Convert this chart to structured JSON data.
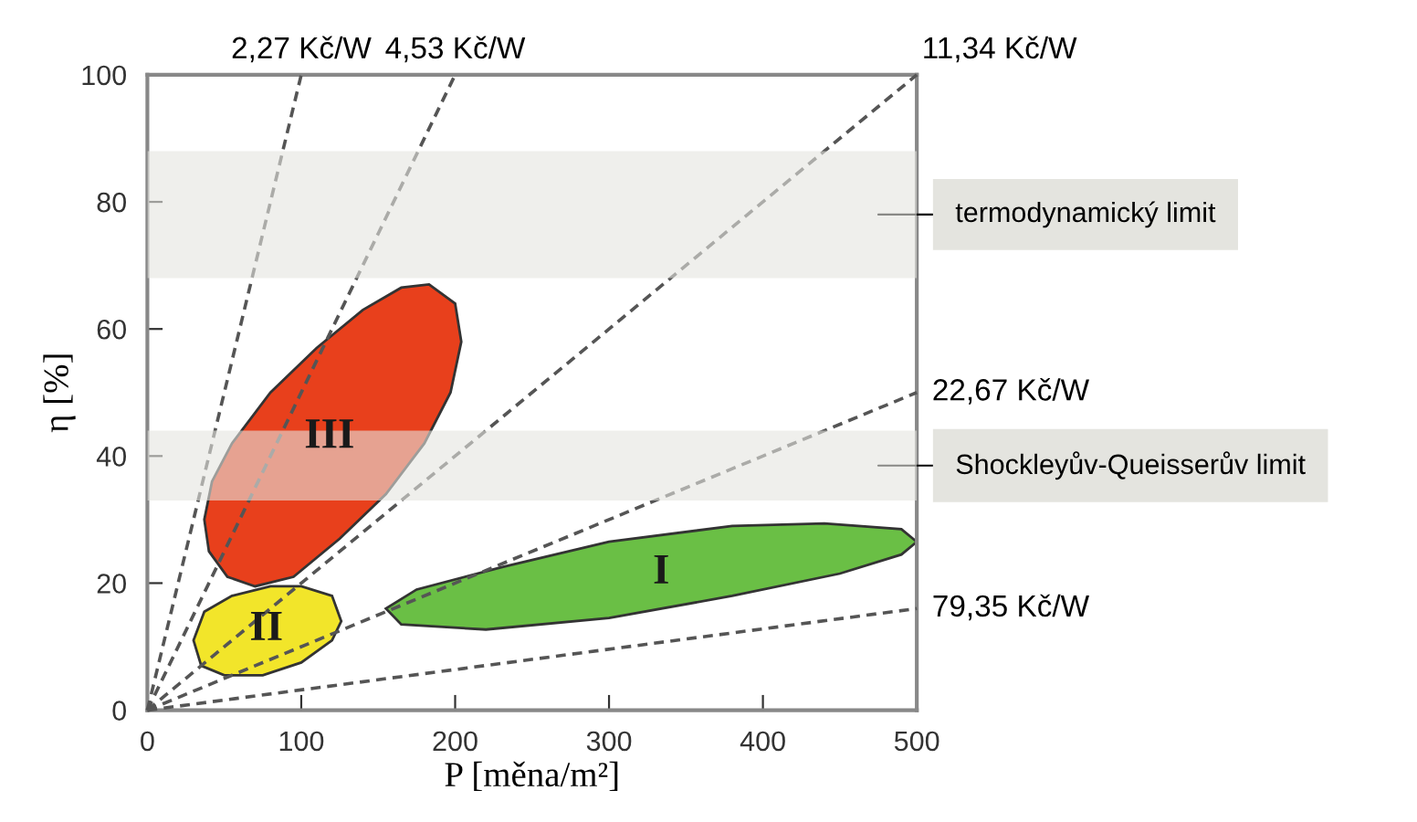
{
  "chart_data": {
    "type": "line",
    "xlabel": "P [měna/m²]",
    "ylabel": "η [%]",
    "xlim": [
      0,
      500
    ],
    "ylim": [
      0,
      100
    ],
    "xticks": [
      0,
      100,
      200,
      300,
      400,
      500
    ],
    "yticks": [
      0,
      20,
      40,
      60,
      80,
      100
    ],
    "grid": false,
    "legend": false,
    "line_style": "dashed",
    "marker": "none",
    "bands": [
      {
        "axis": "y",
        "from": 68,
        "to": 88,
        "label": "termodynamický limit",
        "color": "#e4e4df"
      },
      {
        "axis": "y",
        "from": 33,
        "to": 44,
        "label": "Shockleyův-Queisserův limit",
        "color": "#e4e4df"
      }
    ],
    "series": [
      {
        "type": "area",
        "name": "III",
        "color": "#e8401c",
        "x": [
          183,
          200,
          204,
          197,
          180,
          155,
          125,
          95,
          70,
          52,
          40,
          37,
          42,
          55,
          80,
          110,
          140,
          165
        ],
        "values": [
          67,
          64,
          58,
          50,
          42,
          34,
          27,
          21,
          19.5,
          21,
          25,
          30,
          36,
          42,
          50,
          57,
          63,
          66.5
        ]
      },
      {
        "type": "area",
        "name": "II",
        "color": "#f2e52a",
        "x": [
          30,
          35,
          50,
          75,
          100,
          120,
          126,
          120,
          100,
          80,
          55,
          37
        ],
        "values": [
          11,
          7,
          5.5,
          5.5,
          7.5,
          11,
          14,
          18,
          19.5,
          19.5,
          18,
          15.5
        ]
      },
      {
        "type": "area",
        "name": "I",
        "color": "#6abf45",
        "x": [
          155,
          165,
          220,
          300,
          380,
          450,
          490,
          500,
          490,
          440,
          380,
          300,
          230,
          175
        ],
        "values": [
          16,
          13.5,
          12.7,
          14.5,
          18,
          21.5,
          24.5,
          26.5,
          28.5,
          29.4,
          29,
          26.5,
          22.5,
          19
        ]
      },
      {
        "name": "2,27 Kč/W",
        "color": "#555555",
        "x": [
          0,
          100
        ],
        "values": [
          0,
          100
        ]
      },
      {
        "name": "4,53 Kč/W",
        "color": "#555555",
        "x": [
          0,
          200
        ],
        "values": [
          0,
          100
        ]
      },
      {
        "name": "11,34 Kč/W",
        "color": "#555555",
        "x": [
          0,
          500
        ],
        "values": [
          0,
          100
        ]
      },
      {
        "name": "22,67 Kč/W",
        "color": "#555555",
        "x": [
          0,
          500
        ],
        "values": [
          0,
          50
        ]
      },
      {
        "name": "79,35 Kč/W",
        "color": "#555555",
        "x": [
          0,
          500
        ],
        "values": [
          0,
          16
        ]
      }
    ]
  }
}
